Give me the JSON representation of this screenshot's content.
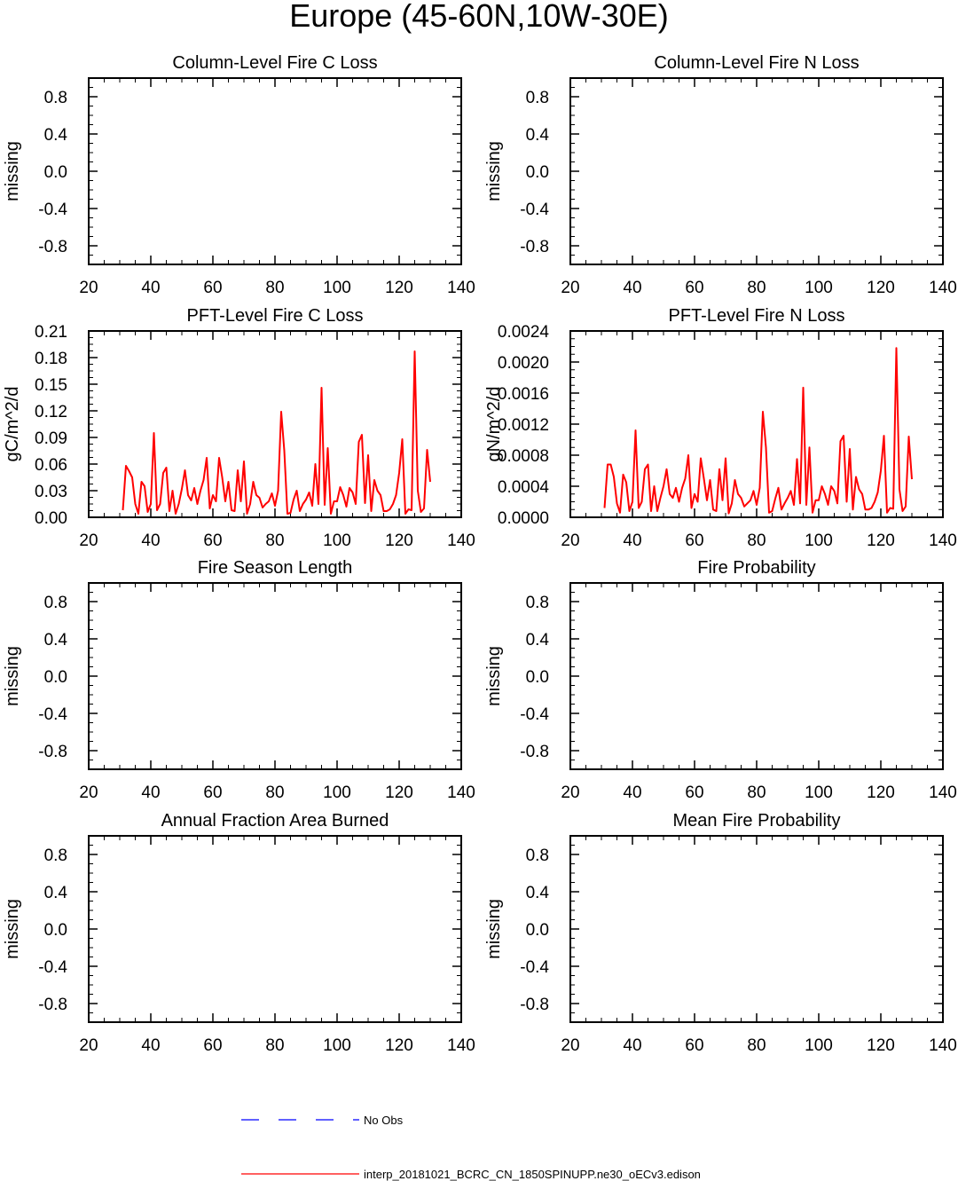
{
  "figure": {
    "title": "Europe (45-60N,10W-30E)",
    "legend": {
      "entries": [
        {
          "label": "No Obs",
          "color": "#0000ff",
          "style": "dashed"
        },
        {
          "label": "interp_20181021_BCRC_CN_1850SPINUPP.ne30_oECv3.edison",
          "color": "#ff0000",
          "style": "solid"
        }
      ]
    }
  },
  "chart_data": [
    {
      "id": "p1",
      "type": "line",
      "title": "Column-Level Fire C Loss",
      "ylabel": "missing",
      "xlim": [
        20,
        140
      ],
      "ylim": [
        -1,
        1
      ],
      "xticks": [
        "20",
        "40",
        "60",
        "80",
        "100",
        "120",
        "140"
      ],
      "yticks": [
        "0.8",
        "0.4",
        "0.0",
        "-0.4",
        "-0.8"
      ],
      "ytick_values": [
        0.8,
        0.4,
        0.0,
        -0.4,
        -0.8
      ],
      "series": []
    },
    {
      "id": "p2",
      "type": "line",
      "title": "Column-Level Fire N Loss",
      "ylabel": "missing",
      "xlim": [
        20,
        140
      ],
      "ylim": [
        -1,
        1
      ],
      "xticks": [
        "20",
        "40",
        "60",
        "80",
        "100",
        "120",
        "140"
      ],
      "yticks": [
        "0.8",
        "0.4",
        "0.0",
        "-0.4",
        "-0.8"
      ],
      "ytick_values": [
        0.8,
        0.4,
        0.0,
        -0.4,
        -0.8
      ],
      "series": []
    },
    {
      "id": "p3",
      "type": "line",
      "title": "PFT-Level Fire C Loss",
      "ylabel": "gC/m^2/d",
      "xlim": [
        20,
        140
      ],
      "ylim": [
        0,
        0.21
      ],
      "xticks": [
        "20",
        "40",
        "60",
        "80",
        "100",
        "120",
        "140"
      ],
      "yticks": [
        "0.21",
        "0.18",
        "0.15",
        "0.12",
        "0.09",
        "0.06",
        "0.03",
        "0.00"
      ],
      "ytick_values": [
        0.21,
        0.18,
        0.15,
        0.12,
        0.09,
        0.06,
        0.03,
        0.0
      ],
      "series": [
        {
          "color": "#ff0000",
          "x": [
            31,
            32,
            33,
            34,
            35,
            36,
            37,
            38,
            39,
            40,
            41,
            42,
            43,
            44,
            45,
            46,
            47,
            48,
            49,
            50,
            51,
            52,
            53,
            54,
            55,
            56,
            57,
            58,
            59,
            60,
            61,
            62,
            63,
            64,
            65,
            66,
            67,
            68,
            69,
            70,
            71,
            72,
            73,
            74,
            75,
            76,
            77,
            78,
            79,
            80,
            81,
            82,
            83,
            84,
            85,
            86,
            87,
            88,
            89,
            90,
            91,
            92,
            93,
            94,
            95,
            96,
            97,
            98,
            99,
            100,
            101,
            102,
            103,
            104,
            105,
            106,
            107,
            108,
            109,
            110,
            111,
            112,
            113,
            114,
            115,
            116,
            117,
            118,
            119,
            120,
            121,
            122,
            123,
            124,
            125,
            126,
            127,
            128,
            129,
            130
          ],
          "y": [
            0.008,
            0.058,
            0.052,
            0.045,
            0.015,
            0.004,
            0.04,
            0.035,
            0.006,
            0.015,
            0.095,
            0.008,
            0.015,
            0.05,
            0.056,
            0.007,
            0.03,
            0.004,
            0.015,
            0.032,
            0.053,
            0.025,
            0.019,
            0.033,
            0.015,
            0.03,
            0.042,
            0.067,
            0.01,
            0.025,
            0.018,
            0.067,
            0.045,
            0.018,
            0.04,
            0.008,
            0.007,
            0.053,
            0.018,
            0.063,
            0.004,
            0.015,
            0.04,
            0.025,
            0.022,
            0.011,
            0.015,
            0.018,
            0.027,
            0.013,
            0.03,
            0.119,
            0.075,
            0.004,
            0.005,
            0.02,
            0.03,
            0.007,
            0.015,
            0.02,
            0.028,
            0.013,
            0.06,
            0.015,
            0.146,
            0.014,
            0.078,
            0.004,
            0.018,
            0.018,
            0.034,
            0.025,
            0.012,
            0.033,
            0.028,
            0.015,
            0.085,
            0.093,
            0.016,
            0.07,
            0.007,
            0.042,
            0.03,
            0.025,
            0.007,
            0.007,
            0.009,
            0.015,
            0.025,
            0.05,
            0.088,
            0.004,
            0.009,
            0.008,
            0.187,
            0.03,
            0.006,
            0.01,
            0.076,
            0.04
          ]
        }
      ]
    },
    {
      "id": "p4",
      "type": "line",
      "title": "PFT-Level Fire N Loss",
      "ylabel": "gN/m^2/d",
      "xlim": [
        20,
        140
      ],
      "ylim": [
        0,
        0.0024
      ],
      "xticks": [
        "20",
        "40",
        "60",
        "80",
        "100",
        "120",
        "140"
      ],
      "yticks": [
        "0.0024",
        "0.0020",
        "0.0016",
        "0.0012",
        "0.0008",
        "0.0004",
        "0.0000"
      ],
      "ytick_values": [
        0.0024,
        0.002,
        0.0016,
        0.0012,
        0.0008,
        0.0004,
        0.0
      ],
      "series": [
        {
          "color": "#ff0000",
          "x": [
            31,
            32,
            33,
            34,
            35,
            36,
            37,
            38,
            39,
            40,
            41,
            42,
            43,
            44,
            45,
            46,
            47,
            48,
            49,
            50,
            51,
            52,
            53,
            54,
            55,
            56,
            57,
            58,
            59,
            60,
            61,
            62,
            63,
            64,
            65,
            66,
            67,
            68,
            69,
            70,
            71,
            72,
            73,
            74,
            75,
            76,
            77,
            78,
            79,
            80,
            81,
            82,
            83,
            84,
            85,
            86,
            87,
            88,
            89,
            90,
            91,
            92,
            93,
            94,
            95,
            96,
            97,
            98,
            99,
            100,
            101,
            102,
            103,
            104,
            105,
            106,
            107,
            108,
            109,
            110,
            111,
            112,
            113,
            114,
            115,
            116,
            117,
            118,
            119,
            120,
            121,
            122,
            123,
            124,
            125,
            126,
            127,
            128,
            129,
            130
          ],
          "y": [
            0.00012,
            0.00068,
            0.00068,
            0.00052,
            0.00018,
            6e-05,
            0.00055,
            0.00045,
            8e-05,
            0.0002,
            0.00112,
            0.00012,
            0.0002,
            0.00062,
            0.00068,
            8e-05,
            0.0004,
            8e-05,
            0.00025,
            0.0004,
            0.00062,
            0.0003,
            0.00025,
            0.00038,
            0.0002,
            0.00038,
            0.0005,
            0.0008,
            0.00012,
            0.0003,
            0.0002,
            0.00076,
            0.0005,
            0.00022,
            0.00048,
            0.0001,
            8e-05,
            0.00062,
            0.00022,
            0.00076,
            5e-05,
            0.00018,
            0.00048,
            0.0003,
            0.00025,
            0.00014,
            0.00018,
            0.00022,
            0.00034,
            0.00016,
            0.00038,
            0.00136,
            0.0009,
            6e-05,
            8e-05,
            0.00024,
            0.00038,
            0.0001,
            0.00018,
            0.00025,
            0.00034,
            0.00016,
            0.00075,
            0.00018,
            0.00167,
            0.00016,
            0.0009,
            6e-05,
            0.00022,
            0.00022,
            0.0004,
            0.0003,
            0.00016,
            0.0004,
            0.00034,
            0.00018,
            0.00098,
            0.00105,
            0.0002,
            0.00088,
            0.0001,
            0.00052,
            0.00036,
            0.0003,
            0.0001,
            0.0001,
            0.00012,
            0.0002,
            0.00032,
            0.0006,
            0.00105,
            6e-05,
            0.00012,
            0.00011,
            0.00218,
            0.00036,
            8e-05,
            0.00014,
            0.00104,
            0.00049
          ]
        }
      ]
    },
    {
      "id": "p5",
      "type": "line",
      "title": "Fire Season Length",
      "ylabel": "missing",
      "xlim": [
        20,
        140
      ],
      "ylim": [
        -1,
        1
      ],
      "xticks": [
        "20",
        "40",
        "60",
        "80",
        "100",
        "120",
        "140"
      ],
      "yticks": [
        "0.8",
        "0.4",
        "0.0",
        "-0.4",
        "-0.8"
      ],
      "ytick_values": [
        0.8,
        0.4,
        0.0,
        -0.4,
        -0.8
      ],
      "series": []
    },
    {
      "id": "p6",
      "type": "line",
      "title": "Fire Probability",
      "ylabel": "missing",
      "xlim": [
        20,
        140
      ],
      "ylim": [
        -1,
        1
      ],
      "xticks": [
        "20",
        "40",
        "60",
        "80",
        "100",
        "120",
        "140"
      ],
      "yticks": [
        "0.8",
        "0.4",
        "0.0",
        "-0.4",
        "-0.8"
      ],
      "ytick_values": [
        0.8,
        0.4,
        0.0,
        -0.4,
        -0.8
      ],
      "series": []
    },
    {
      "id": "p7",
      "type": "line",
      "title": "Annual Fraction Area Burned",
      "ylabel": "missing",
      "xlim": [
        20,
        140
      ],
      "ylim": [
        -1,
        1
      ],
      "xticks": [
        "20",
        "40",
        "60",
        "80",
        "100",
        "120",
        "140"
      ],
      "yticks": [
        "0.8",
        "0.4",
        "0.0",
        "-0.4",
        "-0.8"
      ],
      "ytick_values": [
        0.8,
        0.4,
        0.0,
        -0.4,
        -0.8
      ],
      "series": []
    },
    {
      "id": "p8",
      "type": "line",
      "title": "Mean Fire Probability",
      "ylabel": "missing",
      "xlim": [
        20,
        140
      ],
      "ylim": [
        -1,
        1
      ],
      "xticks": [
        "20",
        "40",
        "60",
        "80",
        "100",
        "120",
        "140"
      ],
      "yticks": [
        "0.8",
        "0.4",
        "0.0",
        "-0.4",
        "-0.8"
      ],
      "ytick_values": [
        0.8,
        0.4,
        0.0,
        -0.4,
        -0.8
      ],
      "series": []
    }
  ]
}
